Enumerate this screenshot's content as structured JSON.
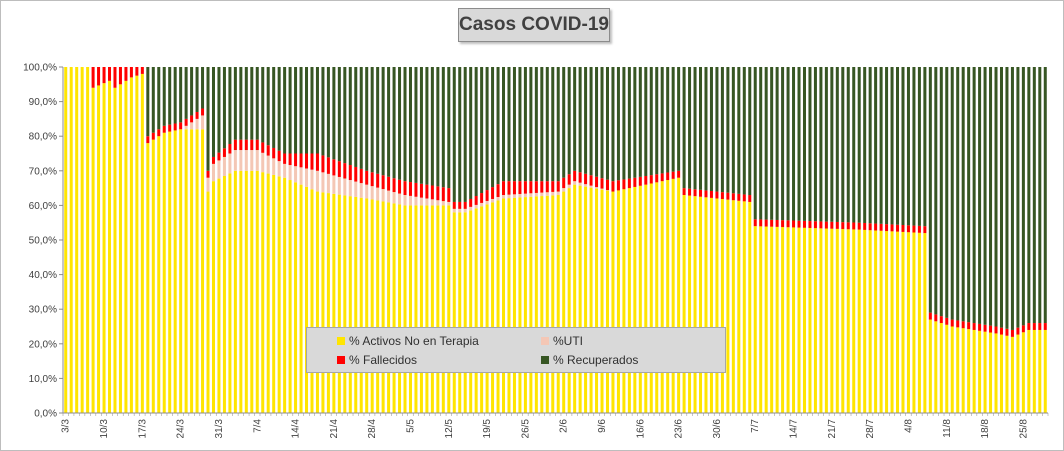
{
  "chart_data": {
    "type": "bar",
    "stacked": "percent",
    "title": "Casos  COVID-19",
    "xlabel": "",
    "ylabel": "",
    "ylim": [
      0,
      100
    ],
    "y_ticks": [
      "0,0%",
      "10,0%",
      "20,0%",
      "30,0%",
      "40,0%",
      "50,0%",
      "60,0%",
      "70,0%",
      "80,0%",
      "90,0%",
      "100,0%"
    ],
    "x_ticks": [
      "3/3",
      "10/3",
      "17/3",
      "24/3",
      "31/3",
      "7/4",
      "14/4",
      "21/4",
      "28/4",
      "5/5",
      "12/5",
      "19/5",
      "26/5",
      "2/6",
      "9/6",
      "16/6",
      "23/6",
      "30/6",
      "7/7",
      "14/7",
      "21/7",
      "28/7",
      "4/8",
      "11/8",
      "18/8",
      "25/8"
    ],
    "day_count": 180,
    "anchors": [
      [
        0,
        100,
        0,
        0
      ],
      [
        4,
        100,
        0,
        0
      ],
      [
        5,
        94,
        0,
        6
      ],
      [
        8,
        96,
        0,
        4
      ],
      [
        9,
        94,
        0,
        6
      ],
      [
        12,
        97,
        0,
        3
      ],
      [
        14,
        98,
        0,
        2
      ],
      [
        15,
        78,
        0,
        2
      ],
      [
        18,
        81,
        0,
        2
      ],
      [
        21,
        82,
        0,
        2
      ],
      [
        25,
        82,
        4,
        2
      ],
      [
        26,
        64,
        4,
        2
      ],
      [
        27,
        67,
        5,
        2
      ],
      [
        31,
        70,
        6,
        3
      ],
      [
        35,
        70,
        6,
        3
      ],
      [
        40,
        68,
        4,
        3
      ],
      [
        46,
        64,
        6,
        5
      ],
      [
        55,
        62,
        4,
        4
      ],
      [
        62,
        60,
        3,
        4
      ],
      [
        70,
        60,
        1,
        4
      ],
      [
        71,
        58,
        1,
        2
      ],
      [
        73,
        58,
        1,
        2
      ],
      [
        80,
        62,
        1,
        4
      ],
      [
        90,
        63,
        1,
        3
      ],
      [
        93,
        66,
        1,
        3
      ],
      [
        100,
        64,
        0,
        3
      ],
      [
        112,
        68,
        0,
        2
      ],
      [
        113,
        63,
        0,
        2
      ],
      [
        125,
        61,
        0,
        2
      ],
      [
        126,
        54,
        0,
        2
      ],
      [
        145,
        53,
        0,
        2
      ],
      [
        157,
        52,
        0,
        2
      ],
      [
        158,
        27,
        0,
        2
      ],
      [
        162,
        25,
        0,
        2
      ],
      [
        170,
        23,
        0,
        2
      ],
      [
        173,
        22,
        0,
        2
      ],
      [
        176,
        24,
        0,
        2
      ],
      [
        179,
        24,
        0,
        2
      ]
    ],
    "series": [
      {
        "name": "% Activos No en Terapia",
        "color": "#ffe500",
        "values_note": "first value of each anchor"
      },
      {
        "name": "%UTI",
        "color": "#f4c7b5",
        "values_note": "second value of each anchor"
      },
      {
        "name": "% Fallecidos",
        "color": "#ff0000",
        "values_note": "third value of each anchor"
      },
      {
        "name": "% Recuperados",
        "color": "#375623",
        "values_note": "remainder to 100%"
      }
    ],
    "legend_position": "bottom-center"
  }
}
